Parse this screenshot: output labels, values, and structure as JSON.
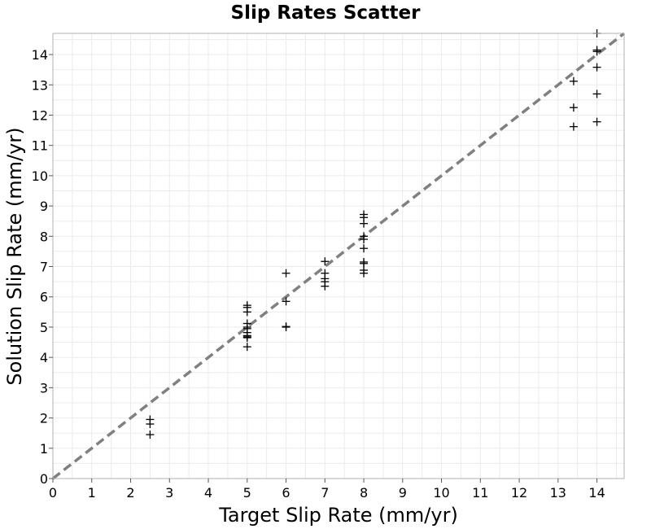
{
  "chart_data": {
    "type": "scatter",
    "title": "Slip Rates Scatter",
    "xlabel": "Target Slip Rate (mm/yr)",
    "ylabel": "Solution Slip Rate (mm/yr)",
    "xlim": [
      0,
      14.7
    ],
    "ylim": [
      0,
      14.7
    ],
    "xticks": [
      "0",
      "1",
      "2",
      "3",
      "4",
      "5",
      "6",
      "7",
      "8",
      "9",
      "10",
      "11",
      "12",
      "13",
      "14"
    ],
    "yticks": [
      "0",
      "1",
      "2",
      "3",
      "4",
      "5",
      "6",
      "7",
      "8",
      "9",
      "10",
      "11",
      "12",
      "13",
      "14"
    ],
    "grid": true,
    "marker": "plus",
    "colors": {
      "marker": "#000000",
      "reference_line": "#808080",
      "grid": "#ebebeb"
    },
    "reference_line": {
      "style": "dashed",
      "from": [
        0,
        0
      ],
      "to": [
        14.7,
        14.7
      ]
    },
    "series": [
      {
        "points": [
          [
            2.5,
            1.95
          ],
          [
            2.5,
            1.8
          ],
          [
            2.5,
            1.45
          ],
          [
            5.0,
            5.72
          ],
          [
            5.0,
            5.65
          ],
          [
            5.0,
            5.5
          ],
          [
            5.0,
            5.12
          ],
          [
            5.0,
            5.0
          ],
          [
            5.0,
            4.95
          ],
          [
            5.0,
            4.82
          ],
          [
            5.0,
            4.72
          ],
          [
            5.0,
            4.68
          ],
          [
            5.0,
            4.65
          ],
          [
            5.0,
            4.35
          ],
          [
            6.0,
            6.78
          ],
          [
            6.0,
            5.85
          ],
          [
            6.0,
            5.02
          ],
          [
            6.0,
            5.0
          ],
          [
            7.0,
            7.17
          ],
          [
            7.0,
            6.78
          ],
          [
            7.0,
            6.6
          ],
          [
            7.0,
            6.5
          ],
          [
            7.0,
            6.35
          ],
          [
            8.0,
            8.72
          ],
          [
            8.0,
            8.62
          ],
          [
            8.0,
            8.42
          ],
          [
            8.0,
            8.0
          ],
          [
            8.0,
            7.9
          ],
          [
            8.0,
            7.6
          ],
          [
            8.0,
            7.15
          ],
          [
            8.0,
            7.1
          ],
          [
            8.0,
            6.88
          ],
          [
            8.0,
            6.78
          ],
          [
            13.4,
            13.12
          ],
          [
            13.4,
            12.25
          ],
          [
            13.4,
            11.62
          ],
          [
            14.0,
            14.7
          ],
          [
            14.0,
            14.15
          ],
          [
            14.0,
            14.1
          ],
          [
            14.0,
            13.58
          ],
          [
            14.0,
            12.7
          ],
          [
            14.0,
            11.78
          ]
        ]
      }
    ]
  }
}
